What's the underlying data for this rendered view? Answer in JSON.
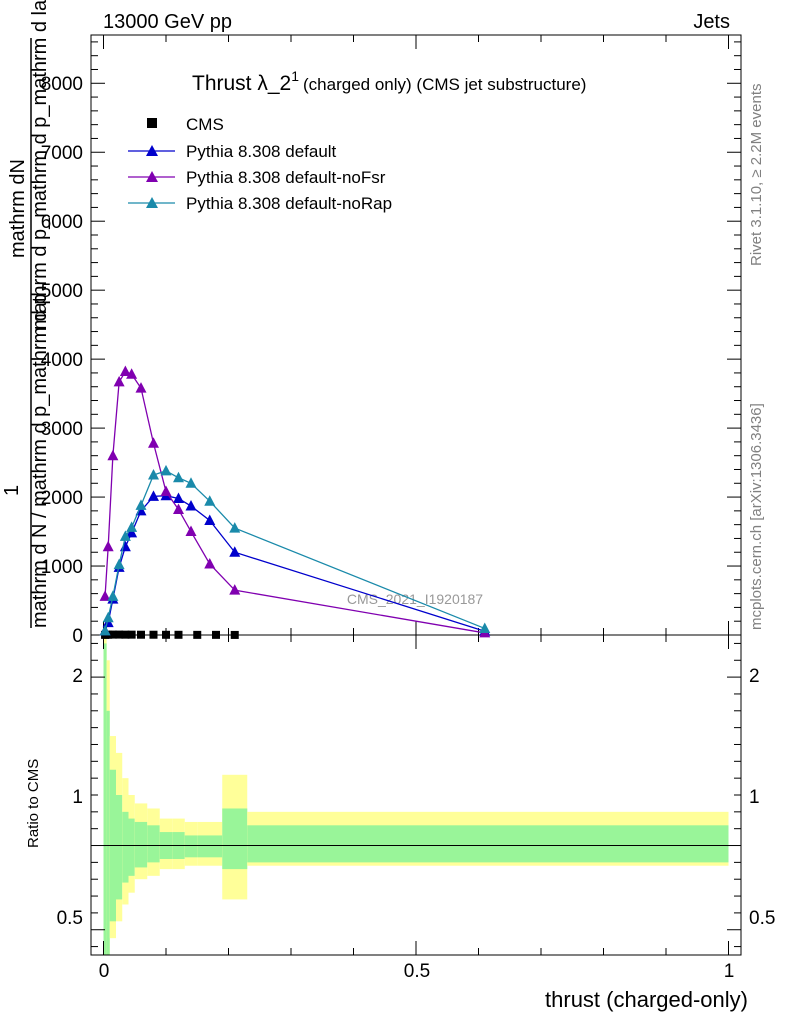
{
  "header": {
    "left": "13000 GeV pp",
    "right": "Jets"
  },
  "side_labels": {
    "rivet": "Rivet 3.1.10, ≥ 2.2M events",
    "mcplots": "mcplots.cern.ch [arXiv:1306.3436]"
  },
  "watermark": "CMS_2021_I1920187",
  "colors": {
    "cms": "#000000",
    "default": "#0000cc",
    "noFsr": "#8000b0",
    "noRap": "#1a8aaa",
    "band_inner": "#99f599",
    "band_outer": "#ffff99"
  },
  "chart_data": {
    "type": "line",
    "title": {
      "main": "Thrust λ_2",
      "superscript": "1",
      "suffix": "(charged only) (CMS jet substructure)"
    },
    "ylabel_top": {
      "numerator": "mathrm dN",
      "denominator": "mathrm d p_mathrm d p_mathrm d lambda",
      "prefix": "1",
      "prefix_denominator": "mathrm d N / mathrm d p_mathrm d p"
    },
    "xlabel": "thrust (charged-only)",
    "ylabel_ratio": "Ratio to CMS",
    "xlim": [
      -0.02,
      1.02
    ],
    "ylim_top": [
      0,
      8700
    ],
    "ylim_ratio": [
      0.35,
      2.25
    ],
    "x_ticks": [
      0,
      0.5,
      1
    ],
    "x_tick_labels": [
      "0",
      "0.5",
      "1"
    ],
    "y_ticks_top": [
      0,
      1000,
      2000,
      3000,
      4000,
      5000,
      6000,
      7000,
      8000
    ],
    "y_tick_labels_top": [
      "0",
      "1000",
      "2000",
      "3000",
      "4000",
      "5000",
      "6000",
      "7000",
      "8000"
    ],
    "y_ticks_ratio": [
      0.5,
      1,
      2
    ],
    "y_tick_labels_ratio": [
      "0.5",
      "1",
      "2"
    ],
    "legend_position": "top-left",
    "series": [
      {
        "name": "CMS",
        "marker": "square",
        "x": [
          0.0025,
          0.0075,
          0.015,
          0.025,
          0.035,
          0.045,
          0.06,
          0.08,
          0.1,
          0.12,
          0.15,
          0.18,
          0.21
        ],
        "y": [
          2,
          4,
          6,
          6,
          5,
          5,
          4,
          4,
          3,
          3,
          2,
          2,
          1
        ]
      },
      {
        "name": "Pythia 8.308 default",
        "marker": "triangle",
        "x": [
          0.0025,
          0.0075,
          0.015,
          0.025,
          0.035,
          0.045,
          0.06,
          0.08,
          0.1,
          0.12,
          0.14,
          0.17,
          0.21,
          0.61
        ],
        "y": [
          60,
          180,
          520,
          980,
          1280,
          1480,
          1800,
          2010,
          2020,
          1980,
          1870,
          1660,
          1200,
          55
        ]
      },
      {
        "name": "Pythia 8.308 default-noFsr",
        "marker": "triangle",
        "x": [
          0.0025,
          0.0075,
          0.015,
          0.025,
          0.035,
          0.045,
          0.06,
          0.08,
          0.1,
          0.12,
          0.14,
          0.17,
          0.21,
          0.61
        ],
        "y": [
          560,
          1280,
          2600,
          3670,
          3820,
          3780,
          3580,
          2780,
          2080,
          1820,
          1500,
          1030,
          650,
          30
        ]
      },
      {
        "name": "Pythia 8.308 default-noRap",
        "marker": "triangle",
        "x": [
          0.0025,
          0.0075,
          0.015,
          0.025,
          0.035,
          0.045,
          0.06,
          0.08,
          0.1,
          0.12,
          0.14,
          0.17,
          0.21,
          0.61
        ],
        "y": [
          60,
          250,
          560,
          1020,
          1430,
          1560,
          1880,
          2320,
          2380,
          2280,
          2200,
          1940,
          1550,
          95
        ]
      }
    ],
    "ratio_bands": {
      "edges": [
        0,
        0.005,
        0.01,
        0.02,
        0.03,
        0.04,
        0.05,
        0.07,
        0.09,
        0.11,
        0.13,
        0.15,
        0.19,
        0.23,
        1.0
      ],
      "inner_lo": [
        0.2,
        0.3,
        0.55,
        0.68,
        0.78,
        0.82,
        0.87,
        0.9,
        0.92,
        0.92,
        0.93,
        0.93,
        0.86,
        0.9
      ],
      "inner_hi": [
        2.2,
        1.8,
        1.45,
        1.3,
        1.2,
        1.16,
        1.14,
        1.12,
        1.08,
        1.08,
        1.06,
        1.06,
        1.22,
        1.12
      ],
      "outer_lo": [
        0.2,
        0.25,
        0.45,
        0.55,
        0.65,
        0.72,
        0.8,
        0.82,
        0.86,
        0.86,
        0.88,
        0.88,
        0.68,
        0.88
      ],
      "outer_hi": [
        2.3,
        2.1,
        1.65,
        1.55,
        1.4,
        1.3,
        1.25,
        1.22,
        1.16,
        1.16,
        1.14,
        1.14,
        1.42,
        1.2
      ]
    }
  }
}
